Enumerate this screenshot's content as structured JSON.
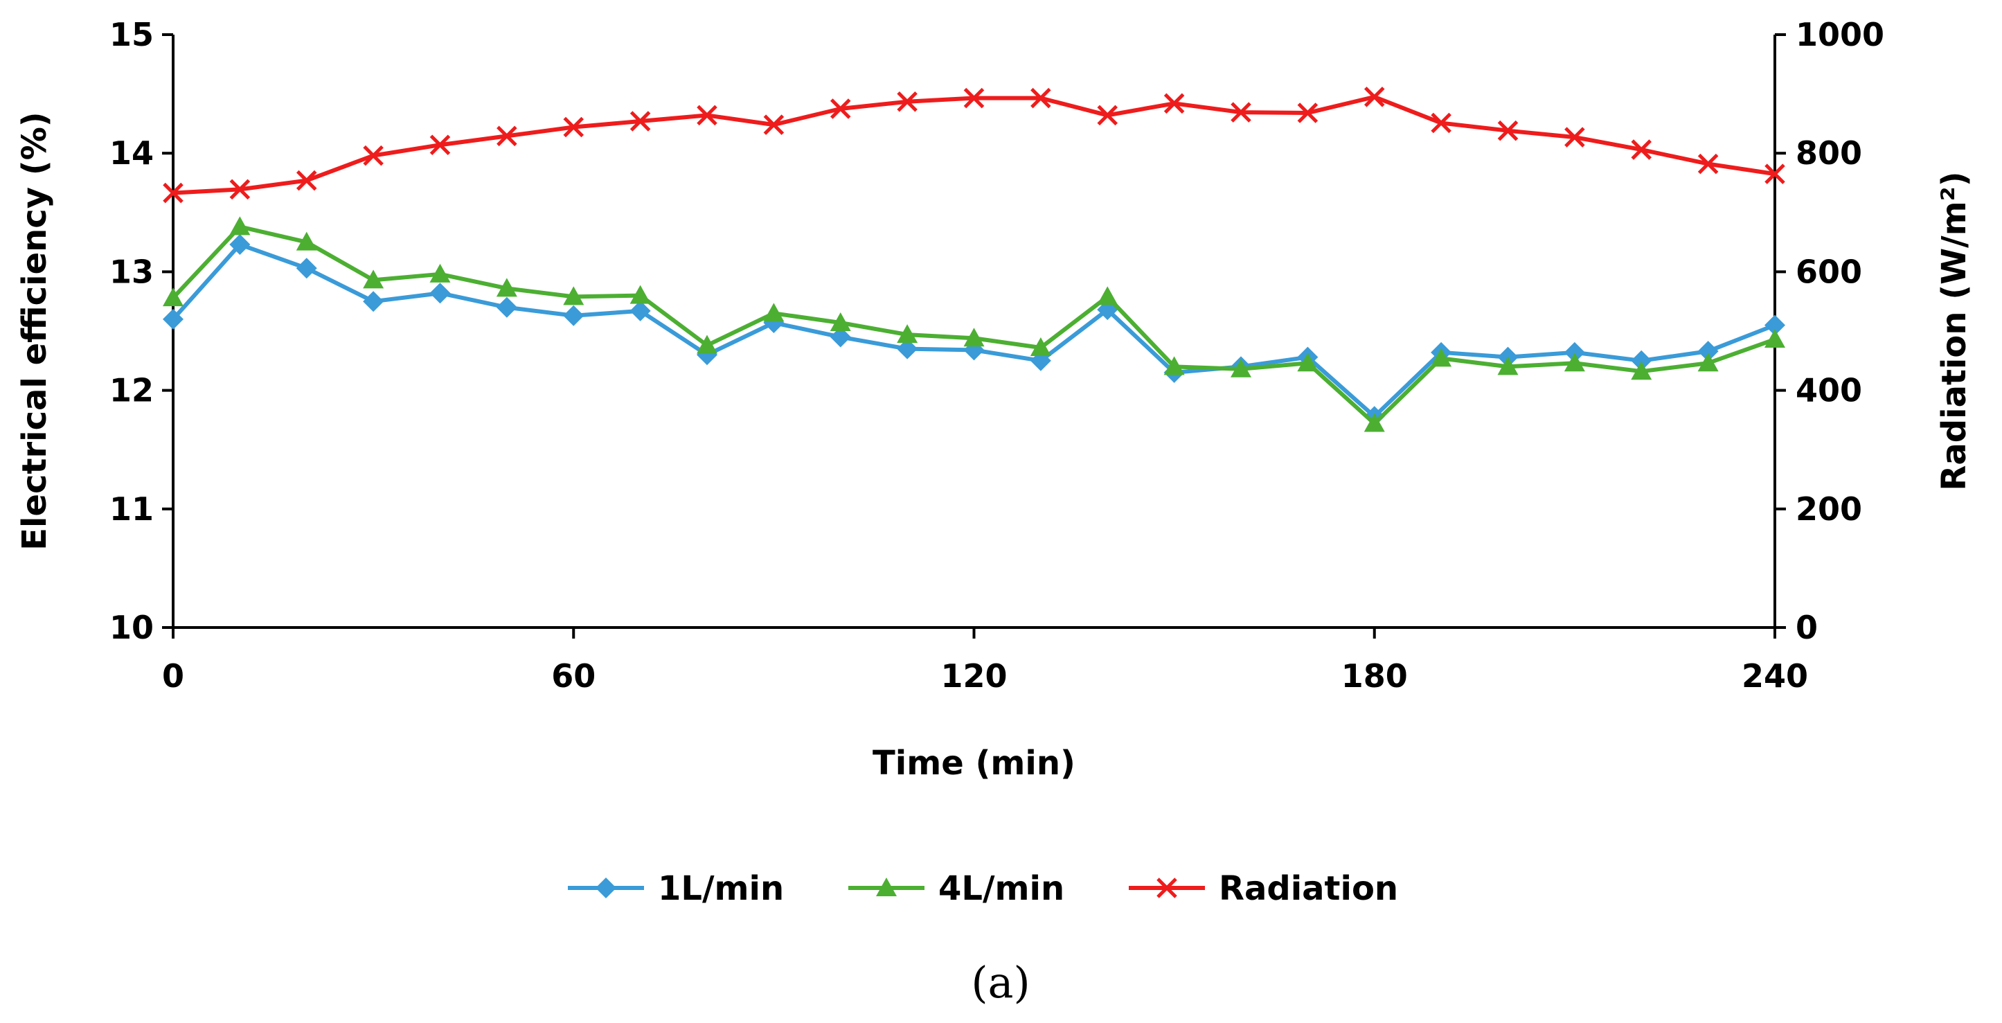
{
  "chart_data": {
    "type": "line",
    "x": [
      0,
      10,
      20,
      30,
      40,
      50,
      60,
      70,
      80,
      90,
      100,
      110,
      120,
      130,
      140,
      150,
      160,
      170,
      180,
      190,
      200,
      210,
      220,
      230,
      240
    ],
    "xlim": [
      0,
      240
    ],
    "xticks": [
      0,
      60,
      120,
      180,
      240
    ],
    "xtick_labels": [
      "0",
      "60",
      "120",
      "180",
      "240"
    ],
    "xlabel": "Time (min)",
    "ylabel": "Electrical efficiency (%)",
    "ylim": [
      10,
      15
    ],
    "yticks": [
      10,
      11,
      12,
      13,
      14,
      15
    ],
    "ytick_labels": [
      "10",
      "11",
      "12",
      "13",
      "14",
      "15"
    ],
    "y2label": "Radiation (W/m²)",
    "y2lim": [
      0,
      1000
    ],
    "y2ticks": [
      0,
      200,
      400,
      600,
      800,
      1000
    ],
    "y2tick_labels": [
      "0",
      "200",
      "400",
      "600",
      "800",
      "1000"
    ],
    "grid": false,
    "legend_position": "bottom",
    "series": [
      {
        "name": "1L/min",
        "axis": "left",
        "color": "#3a9bd8",
        "marker": "diamond",
        "values": [
          12.6,
          13.23,
          13.03,
          12.75,
          12.82,
          12.7,
          12.63,
          12.67,
          12.3,
          12.57,
          12.45,
          12.35,
          12.34,
          12.25,
          12.68,
          12.15,
          12.2,
          12.28,
          11.78,
          12.32,
          12.28,
          12.32,
          12.25,
          12.33,
          12.55
        ]
      },
      {
        "name": "4L/min",
        "axis": "left",
        "color": "#4caf32",
        "marker": "triangle",
        "values": [
          12.78,
          13.38,
          13.25,
          12.93,
          12.98,
          12.86,
          12.79,
          12.8,
          12.38,
          12.65,
          12.57,
          12.47,
          12.44,
          12.36,
          12.79,
          12.2,
          12.18,
          12.23,
          11.72,
          12.27,
          12.2,
          12.23,
          12.16,
          12.23,
          12.43
        ]
      },
      {
        "name": "Radiation",
        "axis": "right",
        "color": "#ee1c1c",
        "marker": "x",
        "values": [
          733,
          739,
          754,
          796,
          814,
          829,
          844,
          854,
          864,
          848,
          875,
          887,
          893,
          893,
          864,
          884,
          869,
          868,
          895,
          851,
          838,
          827,
          806,
          782,
          765
        ]
      }
    ],
    "caption": "(a)"
  }
}
